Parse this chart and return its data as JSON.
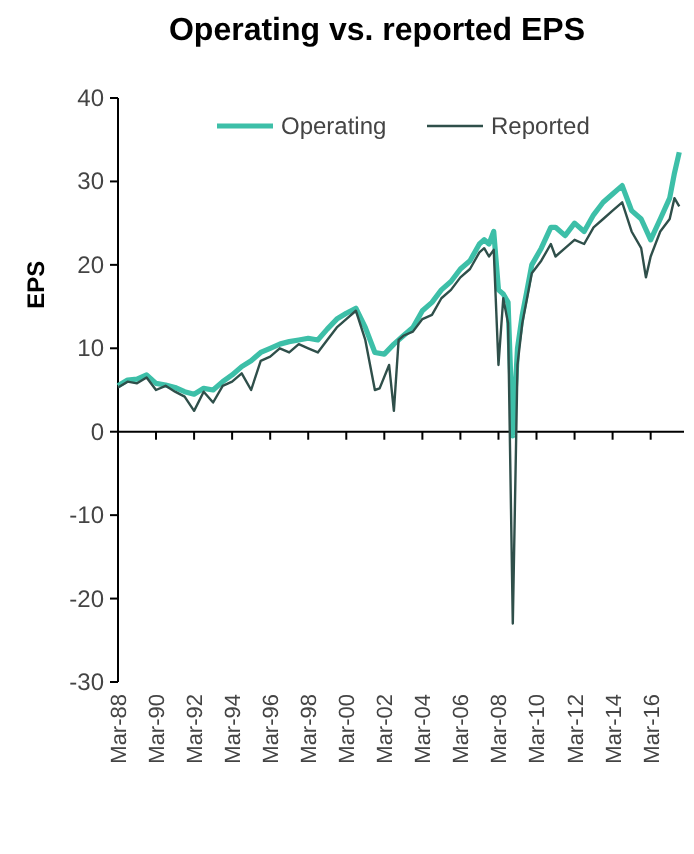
{
  "chart_data": {
    "type": "line",
    "title": "Operating vs. reported EPS",
    "ylabel": "EPS",
    "xlim": [
      "1988-03",
      "2017-12"
    ],
    "ylim": [
      -30,
      40
    ],
    "yticks": [
      -30,
      -20,
      -10,
      0,
      10,
      20,
      30,
      40
    ],
    "xticks": [
      {
        "value": "1988-03",
        "label": "Mar-88"
      },
      {
        "value": "1990-03",
        "label": "Mar-90"
      },
      {
        "value": "1992-03",
        "label": "Mar-92"
      },
      {
        "value": "1994-03",
        "label": "Mar-94"
      },
      {
        "value": "1996-03",
        "label": "Mar-96"
      },
      {
        "value": "1998-03",
        "label": "Mar-98"
      },
      {
        "value": "2000-03",
        "label": "Mar-00"
      },
      {
        "value": "2002-03",
        "label": "Mar-02"
      },
      {
        "value": "2004-03",
        "label": "Mar-04"
      },
      {
        "value": "2006-03",
        "label": "Mar-06"
      },
      {
        "value": "2008-03",
        "label": "Mar-08"
      },
      {
        "value": "2010-03",
        "label": "Mar-10"
      },
      {
        "value": "2012-03",
        "label": "Mar-12"
      },
      {
        "value": "2014-03",
        "label": "Mar-14"
      },
      {
        "value": "2016-03",
        "label": "Mar-16"
      }
    ],
    "legend": "top",
    "series": [
      {
        "name": "Operating",
        "color": "#3dbfa8",
        "x": [
          "1988-03",
          "1988-09",
          "1989-03",
          "1989-09",
          "1990-03",
          "1990-09",
          "1991-03",
          "1991-09",
          "1992-03",
          "1992-09",
          "1993-03",
          "1993-09",
          "1994-03",
          "1994-09",
          "1995-03",
          "1995-09",
          "1996-03",
          "1996-09",
          "1997-03",
          "1997-09",
          "1998-03",
          "1998-09",
          "1999-03",
          "1999-09",
          "2000-03",
          "2000-09",
          "2001-03",
          "2001-09",
          "2002-03",
          "2002-09",
          "2003-03",
          "2003-09",
          "2004-03",
          "2004-09",
          "2005-03",
          "2005-09",
          "2006-03",
          "2006-09",
          "2007-03",
          "2007-06",
          "2007-09",
          "2007-12",
          "2008-03",
          "2008-06",
          "2008-09",
          "2008-12",
          "2009-03",
          "2009-06",
          "2009-09",
          "2009-12",
          "2010-06",
          "2010-12",
          "2011-03",
          "2011-09",
          "2012-03",
          "2012-09",
          "2013-03",
          "2013-09",
          "2014-03",
          "2014-09",
          "2015-03",
          "2015-09",
          "2016-03",
          "2016-09",
          "2017-03",
          "2017-06",
          "2017-09"
        ],
        "values": [
          5.5,
          6.2,
          6.3,
          6.8,
          5.8,
          5.6,
          5.3,
          4.8,
          4.5,
          5.2,
          5.0,
          6.0,
          6.8,
          7.8,
          8.5,
          9.5,
          10.0,
          10.5,
          10.8,
          11.0,
          11.2,
          11.0,
          12.3,
          13.5,
          14.2,
          14.8,
          12.5,
          9.5,
          9.3,
          10.5,
          11.5,
          12.5,
          14.5,
          15.5,
          17.0,
          18.0,
          19.5,
          20.5,
          22.5,
          23.0,
          22.5,
          24.0,
          17.0,
          16.5,
          15.5,
          -0.5,
          10.0,
          14.0,
          17.0,
          20.0,
          22.0,
          24.5,
          24.5,
          23.5,
          25.0,
          24.0,
          26.0,
          27.5,
          28.5,
          29.5,
          26.5,
          25.5,
          23.0,
          25.5,
          28.0,
          31.0,
          33.5
        ]
      },
      {
        "name": "Reported",
        "color": "#2f4f4a",
        "x": [
          "1988-03",
          "1988-09",
          "1989-03",
          "1989-09",
          "1990-03",
          "1990-09",
          "1991-03",
          "1991-09",
          "1992-03",
          "1992-09",
          "1993-03",
          "1993-09",
          "1994-03",
          "1994-09",
          "1995-03",
          "1995-09",
          "1996-03",
          "1996-09",
          "1997-03",
          "1997-09",
          "1998-03",
          "1998-09",
          "1999-03",
          "1999-09",
          "2000-03",
          "2000-09",
          "2001-03",
          "2001-09",
          "2001-12",
          "2002-06",
          "2002-09",
          "2002-12",
          "2003-03",
          "2003-09",
          "2004-03",
          "2004-09",
          "2005-03",
          "2005-09",
          "2006-03",
          "2006-09",
          "2007-03",
          "2007-06",
          "2007-09",
          "2007-12",
          "2008-03",
          "2008-06",
          "2008-09",
          "2008-12",
          "2009-03",
          "2009-06",
          "2009-09",
          "2009-12",
          "2010-06",
          "2010-12",
          "2011-03",
          "2011-09",
          "2012-03",
          "2012-09",
          "2013-03",
          "2013-09",
          "2014-03",
          "2014-09",
          "2015-03",
          "2015-09",
          "2015-12",
          "2016-03",
          "2016-09",
          "2017-03",
          "2017-06",
          "2017-09"
        ],
        "values": [
          5.3,
          6.0,
          5.8,
          6.5,
          5.0,
          5.5,
          4.8,
          4.2,
          2.5,
          4.8,
          3.5,
          5.5,
          6.0,
          7.0,
          5.0,
          8.5,
          9.0,
          10.0,
          9.5,
          10.5,
          10.0,
          9.5,
          11.0,
          12.5,
          13.5,
          14.5,
          11.0,
          5.0,
          5.2,
          8.0,
          2.5,
          11.0,
          11.5,
          12.0,
          13.5,
          14.0,
          16.0,
          17.0,
          18.5,
          19.5,
          21.5,
          22.0,
          21.0,
          21.8,
          8.0,
          16.0,
          13.0,
          -23.0,
          8.0,
          13.0,
          16.0,
          19.0,
          20.5,
          22.5,
          21.0,
          22.0,
          23.0,
          22.5,
          24.5,
          25.5,
          26.5,
          27.5,
          24.0,
          22.0,
          18.5,
          21.0,
          24.0,
          25.5,
          28.0,
          27.0
        ]
      }
    ]
  }
}
